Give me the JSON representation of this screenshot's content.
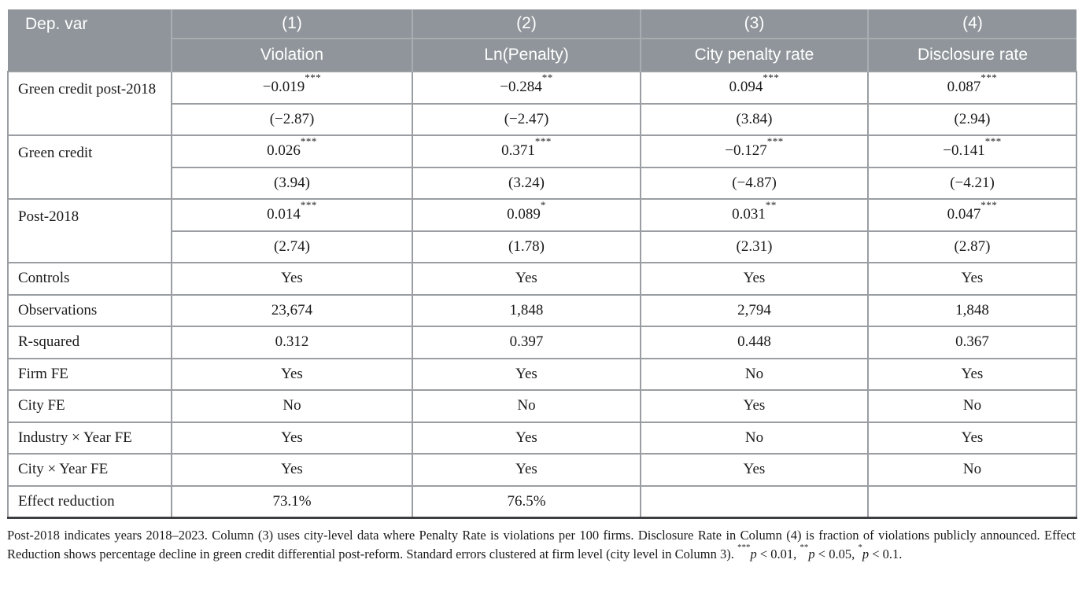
{
  "colors": {
    "header_bg": "#8F959A",
    "header_divider": "#A8ADB1",
    "header_text": "#FFFFFF",
    "body_border": "#9A9EA2",
    "table_bottom_border": "#3C3F42",
    "body_text": "#1A1A1A",
    "page_bg": "#FFFFFF"
  },
  "table": {
    "header": {
      "dep_var_label": "Dep. var",
      "columns": [
        {
          "number": "(1)",
          "name": "Violation"
        },
        {
          "number": "(2)",
          "name": "Ln(Penalty)"
        },
        {
          "number": "(3)",
          "name": "City penalty rate"
        },
        {
          "number": "(4)",
          "name": "Disclosure rate"
        }
      ]
    },
    "coefficient_rows": [
      {
        "label": "Green credit post-2018",
        "coefficients": [
          {
            "value": "−0.019",
            "stars": "***"
          },
          {
            "value": "−0.284",
            "stars": "**"
          },
          {
            "value": "0.094",
            "stars": "***"
          },
          {
            "value": "0.087",
            "stars": "***"
          }
        ],
        "t_stats": [
          "(−2.87)",
          "(−2.47)",
          "(3.84)",
          "(2.94)"
        ]
      },
      {
        "label": "Green credit",
        "coefficients": [
          {
            "value": "0.026",
            "stars": "***"
          },
          {
            "value": "0.371",
            "stars": "***"
          },
          {
            "value": "−0.127",
            "stars": "***"
          },
          {
            "value": "−0.141",
            "stars": "***"
          }
        ],
        "t_stats": [
          "(3.94)",
          "(3.24)",
          "(−4.87)",
          "(−4.21)"
        ]
      },
      {
        "label": "Post-2018",
        "coefficients": [
          {
            "value": "0.014",
            "stars": "***"
          },
          {
            "value": "0.089",
            "stars": "*"
          },
          {
            "value": "0.031",
            "stars": "**"
          },
          {
            "value": "0.047",
            "stars": "***"
          }
        ],
        "t_stats": [
          "(2.74)",
          "(1.78)",
          "(2.31)",
          "(2.87)"
        ]
      }
    ],
    "summary_rows": [
      {
        "label": "Controls",
        "values": [
          "Yes",
          "Yes",
          "Yes",
          "Yes"
        ]
      },
      {
        "label": "Observations",
        "values": [
          "23,674",
          "1,848",
          "2,794",
          "1,848"
        ]
      },
      {
        "label": "R-squared",
        "values": [
          "0.312",
          "0.397",
          "0.448",
          "0.367"
        ]
      },
      {
        "label": "Firm FE",
        "values": [
          "Yes",
          "Yes",
          "No",
          "Yes"
        ]
      },
      {
        "label": "City FE",
        "values": [
          "No",
          "No",
          "Yes",
          "No"
        ]
      },
      {
        "label": "Industry × Year FE",
        "values": [
          "Yes",
          "Yes",
          "No",
          "Yes"
        ]
      },
      {
        "label": "City × Year FE",
        "values": [
          "Yes",
          "Yes",
          "Yes",
          "No"
        ]
      },
      {
        "label": "Effect reduction",
        "values": [
          "73.1%",
          "76.5%",
          "",
          ""
        ]
      }
    ]
  },
  "footnote": {
    "text": "Post-2018 indicates years 2018–2023. Column (3) uses city-level data where Penalty Rate is violations per 100 firms. Disclosure Rate in Column (4) is fraction of violations publicly announced. Effect Reduction shows percentage decline in green credit differential post-reform. Standard errors clustered at firm level (city level in Column 3).",
    "p_symbol": "p",
    "significance": [
      {
        "stars": "***",
        "threshold": "0.01"
      },
      {
        "stars": "**",
        "threshold": "0.05"
      },
      {
        "stars": "*",
        "threshold": "0.1"
      }
    ]
  }
}
